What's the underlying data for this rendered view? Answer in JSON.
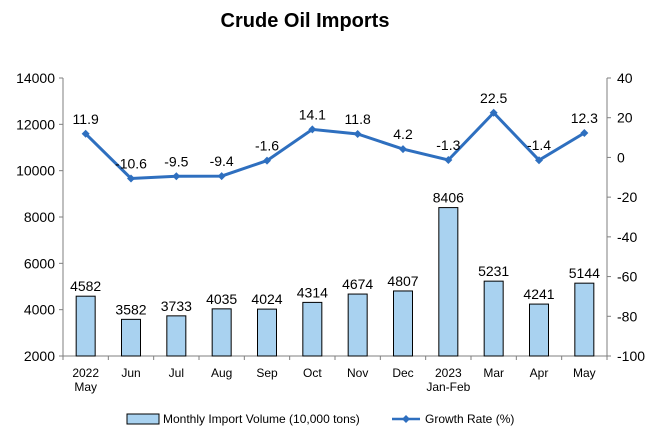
{
  "chart_data": {
    "type": "bar",
    "title": "Crude Oil Imports",
    "categories": [
      {
        "line1": "2022",
        "line2": "May"
      },
      {
        "line1": "Jun",
        "line2": ""
      },
      {
        "line1": "Jul",
        "line2": ""
      },
      {
        "line1": "Aug",
        "line2": ""
      },
      {
        "line1": "Sep",
        "line2": ""
      },
      {
        "line1": "Oct",
        "line2": ""
      },
      {
        "line1": "Nov",
        "line2": ""
      },
      {
        "line1": "Dec",
        "line2": ""
      },
      {
        "line1": "2023",
        "line2": "Jan-Feb"
      },
      {
        "line1": "Mar",
        "line2": ""
      },
      {
        "line1": "Apr",
        "line2": ""
      },
      {
        "line1": "May",
        "line2": ""
      }
    ],
    "series": [
      {
        "name": "Monthly Import Volume (10,000 tons)",
        "type": "bar",
        "axis": "left",
        "values": [
          4582,
          3582,
          3733,
          4035,
          4024,
          4314,
          4674,
          4807,
          8406,
          5231,
          4241,
          5144
        ],
        "labels": [
          "4582",
          "3582",
          "3733",
          "4035",
          "4024",
          "4314",
          "4674",
          "4807",
          "8406",
          "5231",
          "4241",
          "5144"
        ]
      },
      {
        "name": "Growth Rate (%)",
        "type": "line",
        "axis": "right",
        "values": [
          11.9,
          -10.6,
          -9.5,
          -9.4,
          -1.6,
          14.1,
          11.8,
          4.2,
          -1.3,
          22.5,
          -1.4,
          12.3
        ],
        "labels": [
          "11.9",
          "-10.6",
          "-9.5",
          "-9.4",
          "-1.6",
          "14.1",
          "11.8",
          "4.2",
          "-1.3",
          "22.5",
          "-1.4",
          "12.3"
        ]
      }
    ],
    "y_left": {
      "min": 2000,
      "max": 14000,
      "ticks": [
        "2000",
        "4000",
        "6000",
        "8000",
        "10000",
        "12000",
        "14000"
      ]
    },
    "y_right": {
      "min": -100,
      "max": 40,
      "ticks": [
        "-100",
        "-80",
        "-60",
        "-40",
        "-20",
        "0",
        "20",
        "40"
      ]
    },
    "grid": false,
    "legend_position": "bottom",
    "colors": {
      "bar_fill": "#a9d2f0",
      "bar_stroke": "#000000",
      "line": "#2e6fbf",
      "axis": "#7f7f7f"
    }
  }
}
